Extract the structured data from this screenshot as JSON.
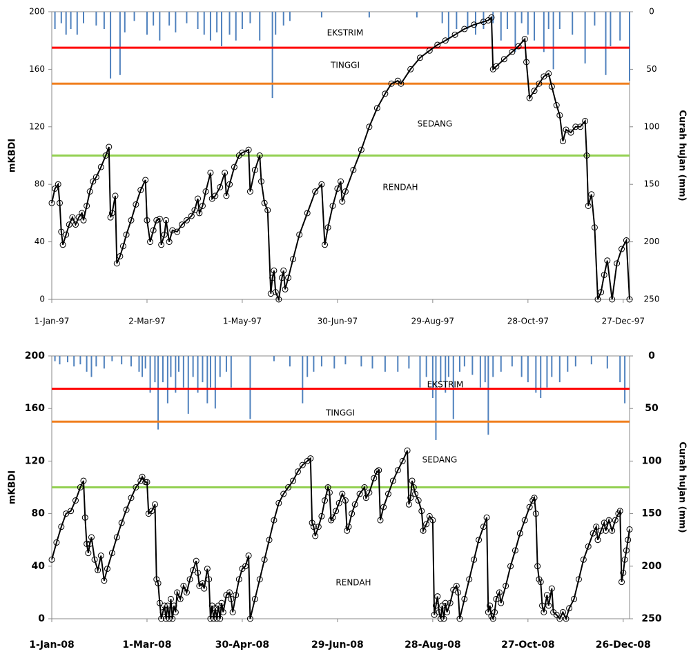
{
  "chart_data": [
    {
      "type": "line",
      "ylabel": "mKBDI",
      "y2label": "Curah hujan (mm)",
      "xlim": [
        0,
        364
      ],
      "ylim": [
        0,
        200
      ],
      "y2lim": [
        250,
        0
      ],
      "xticks": [
        {
          "value": 0,
          "label": "1-Jan-97"
        },
        {
          "value": 60,
          "label": "2-Mar-97"
        },
        {
          "value": 120,
          "label": "1-May-97"
        },
        {
          "value": 180,
          "label": "30-Jun-97"
        },
        {
          "value": 240,
          "label": "29-Aug-97"
        },
        {
          "value": 300,
          "label": "28-Oct-97"
        },
        {
          "value": 360,
          "label": "27-Dec-97"
        }
      ],
      "yticks": [
        0,
        40,
        80,
        120,
        160,
        200
      ],
      "y2ticks": [
        0,
        50,
        100,
        150,
        200,
        250
      ],
      "hlines": [
        {
          "value": 175,
          "color": "#ff0000"
        },
        {
          "value": 150,
          "color": "#f07f1e"
        },
        {
          "value": 100,
          "color": "#92d050"
        }
      ],
      "annotations": [
        "EKSTRIM",
        "TINGGI",
        "SEDANG",
        "RENDAH"
      ],
      "series": [
        {
          "type": "bar",
          "axis": "y2",
          "color": "#4f81bd",
          "x": [
            2,
            6,
            9,
            12,
            16,
            20,
            28,
            33,
            37,
            43,
            46,
            52,
            60,
            64,
            68,
            74,
            78,
            85,
            92,
            96,
            100,
            104,
            107,
            112,
            116,
            120,
            125,
            131,
            139,
            141,
            146,
            150,
            170,
            200,
            230,
            246,
            250,
            255,
            262,
            267,
            272,
            278,
            283,
            287,
            292,
            296,
            300,
            304,
            310,
            313,
            316,
            320,
            328,
            336,
            342,
            349,
            352,
            358,
            364
          ],
          "values": [
            15,
            10,
            20,
            15,
            20,
            10,
            12,
            15,
            58,
            55,
            18,
            8,
            20,
            12,
            25,
            12,
            18,
            10,
            15,
            20,
            25,
            18,
            30,
            20,
            25,
            15,
            10,
            25,
            75,
            20,
            12,
            8,
            5,
            5,
            5,
            10,
            25,
            15,
            15,
            20,
            15,
            10,
            25,
            15,
            35,
            10,
            20,
            25,
            35,
            15,
            50,
            15,
            20,
            45,
            12,
            55,
            30,
            25,
            60
          ]
        },
        {
          "type": "line",
          "color": "#000000",
          "x": [
            0,
            2,
            4,
            5,
            6,
            7,
            9,
            11,
            13,
            15,
            17,
            19,
            20,
            22,
            24,
            26,
            28,
            31,
            34,
            36,
            37,
            38,
            40,
            41,
            43,
            45,
            47,
            50,
            53,
            56,
            59,
            60,
            62,
            64,
            66,
            68,
            69,
            71,
            72,
            74,
            76,
            79,
            82,
            85,
            88,
            90,
            92,
            93,
            95,
            97,
            100,
            101,
            103,
            106,
            109,
            110,
            112,
            115,
            118,
            120,
            124,
            125,
            128,
            131,
            132,
            134,
            136,
            138,
            139,
            140,
            141,
            143,
            145,
            146,
            147,
            149,
            152,
            156,
            161,
            166,
            170,
            172,
            174,
            177,
            180,
            182,
            183,
            185,
            190,
            195,
            200,
            205,
            210,
            214,
            218,
            220,
            226,
            232,
            238,
            243,
            248,
            254,
            260,
            266,
            272,
            275,
            277,
            278,
            280,
            285,
            290,
            294,
            298,
            299,
            301,
            304,
            307,
            310,
            313,
            315,
            318,
            320,
            322,
            324,
            327,
            330,
            333,
            336,
            337,
            338,
            340,
            342,
            344,
            346,
            348,
            350,
            353,
            356,
            359,
            362,
            364
          ],
          "values": [
            67,
            77,
            80,
            67,
            47,
            38,
            45,
            52,
            57,
            52,
            57,
            60,
            55,
            65,
            75,
            82,
            85,
            92,
            100,
            106,
            57,
            60,
            72,
            25,
            30,
            37,
            45,
            55,
            66,
            76,
            83,
            55,
            40,
            48,
            55,
            56,
            38,
            45,
            55,
            40,
            48,
            47,
            52,
            55,
            58,
            62,
            70,
            60,
            65,
            75,
            88,
            70,
            72,
            78,
            88,
            72,
            80,
            92,
            100,
            102,
            104,
            75,
            90,
            100,
            82,
            67,
            62,
            4,
            15,
            20,
            5,
            0,
            15,
            20,
            7,
            15,
            28,
            45,
            60,
            75,
            80,
            38,
            50,
            65,
            77,
            82,
            68,
            75,
            90,
            104,
            120,
            133,
            143,
            150,
            152,
            150,
            160,
            168,
            173,
            177,
            180,
            184,
            188,
            191,
            193,
            194,
            196,
            160,
            162,
            167,
            172,
            176,
            181,
            165,
            140,
            145,
            150,
            155,
            157,
            148,
            135,
            128,
            110,
            118,
            116,
            120,
            120,
            124,
            100,
            65,
            73,
            50,
            0,
            5,
            17,
            27,
            0,
            25,
            35,
            41,
            0
          ]
        }
      ]
    },
    {
      "type": "line",
      "ylabel": "mKBDI",
      "y2label": "Curah hujan (mm)",
      "xlim": [
        0,
        364
      ],
      "ylim": [
        0,
        200
      ],
      "y2lim": [
        250,
        0
      ],
      "xticks": [
        {
          "value": 0,
          "label": "1-Jan-08"
        },
        {
          "value": 60,
          "label": "1-Mar-08"
        },
        {
          "value": 120,
          "label": "30-Apr-08"
        },
        {
          "value": 180,
          "label": "29-Jun-08"
        },
        {
          "value": 240,
          "label": "28-Aug-08"
        },
        {
          "value": 300,
          "label": "27-Oct-08"
        },
        {
          "value": 360,
          "label": "26-Dec-08"
        }
      ],
      "yticks": [
        0,
        40,
        80,
        120,
        160,
        200
      ],
      "y2ticks": [
        0,
        50,
        100,
        150,
        200,
        250
      ],
      "hlines": [
        {
          "value": 175,
          "color": "#ff0000"
        },
        {
          "value": 150,
          "color": "#f07f1e"
        },
        {
          "value": 100,
          "color": "#92d050"
        }
      ],
      "annotations": [
        "EKSTRIM",
        "TINGGI",
        "SEDANG",
        "RENDAH"
      ],
      "series": [
        {
          "type": "bar",
          "axis": "y2",
          "color": "#4f81bd",
          "x": [
            2,
            5,
            10,
            14,
            18,
            22,
            25,
            28,
            33,
            38,
            44,
            50,
            55,
            57,
            59,
            62,
            65,
            67,
            70,
            73,
            75,
            78,
            80,
            83,
            86,
            89,
            92,
            95,
            98,
            100,
            103,
            106,
            110,
            113,
            125,
            140,
            150,
            158,
            161,
            165,
            170,
            178,
            185,
            195,
            202,
            210,
            218,
            225,
            232,
            236,
            240,
            242,
            245,
            248,
            250,
            253,
            257,
            260,
            265,
            270,
            273,
            275,
            278,
            283,
            290,
            296,
            300,
            305,
            308,
            312,
            315,
            320,
            325,
            330,
            340,
            350,
            358,
            361
          ],
          "values": [
            5,
            8,
            6,
            10,
            8,
            15,
            20,
            10,
            12,
            5,
            8,
            10,
            15,
            20,
            12,
            35,
            25,
            70,
            25,
            45,
            20,
            35,
            15,
            30,
            55,
            20,
            35,
            25,
            45,
            30,
            50,
            20,
            15,
            30,
            60,
            5,
            10,
            45,
            20,
            15,
            10,
            12,
            8,
            10,
            12,
            15,
            15,
            12,
            30,
            20,
            40,
            80,
            25,
            35,
            20,
            60,
            15,
            10,
            18,
            30,
            25,
            75,
            20,
            15,
            10,
            20,
            25,
            35,
            40,
            30,
            20,
            25,
            15,
            10,
            8,
            12,
            25,
            45
          ]
        },
        {
          "type": "line",
          "color": "#000000",
          "x": [
            0,
            3,
            6,
            9,
            12,
            15,
            18,
            20,
            21,
            22,
            23,
            24,
            25,
            27,
            29,
            31,
            33,
            35,
            38,
            41,
            44,
            47,
            50,
            53,
            56,
            57,
            59,
            60,
            61,
            63,
            65,
            66,
            67,
            68,
            69,
            70,
            71,
            72,
            73,
            74,
            75,
            76,
            77,
            78,
            79,
            81,
            83,
            85,
            87,
            89,
            91,
            92,
            93,
            95,
            96,
            98,
            99,
            100,
            101,
            102,
            103,
            104,
            105,
            106,
            107,
            108,
            110,
            112,
            113,
            114,
            116,
            118,
            120,
            122,
            124,
            125,
            128,
            131,
            134,
            137,
            140,
            143,
            146,
            149,
            152,
            155,
            158,
            161,
            163,
            164,
            165,
            166,
            168,
            170,
            172,
            174,
            175,
            176,
            177,
            179,
            181,
            183,
            185,
            186,
            187,
            189,
            191,
            194,
            197,
            198,
            200,
            203,
            205,
            206,
            207,
            209,
            212,
            215,
            218,
            221,
            224,
            225,
            226,
            227,
            228,
            229,
            231,
            233,
            234,
            236,
            238,
            240,
            241,
            242,
            243,
            244,
            245,
            246,
            247,
            248,
            249,
            251,
            253,
            255,
            256,
            257,
            260,
            263,
            266,
            269,
            272,
            274,
            275,
            276,
            277,
            278,
            279,
            280,
            282,
            283,
            286,
            289,
            292,
            295,
            298,
            301,
            303,
            304,
            305,
            306,
            307,
            308,
            309,
            310,
            312,
            313,
            315,
            316,
            318,
            320,
            322,
            324,
            326,
            329,
            332,
            335,
            338,
            341,
            343,
            344,
            346,
            348,
            349,
            351,
            353,
            355,
            357,
            358,
            359,
            360,
            361,
            362,
            363,
            364
          ],
          "values": [
            45,
            58,
            70,
            80,
            82,
            90,
            100,
            105,
            77,
            57,
            50,
            57,
            62,
            45,
            37,
            48,
            29,
            38,
            50,
            62,
            73,
            83,
            92,
            100,
            105,
            108,
            104,
            104,
            80,
            82,
            87,
            30,
            27,
            12,
            0,
            5,
            10,
            0,
            10,
            0,
            15,
            0,
            10,
            5,
            20,
            15,
            25,
            20,
            30,
            37,
            44,
            35,
            25,
            27,
            23,
            38,
            30,
            0,
            10,
            0,
            8,
            0,
            10,
            0,
            12,
            5,
            18,
            20,
            15,
            5,
            18,
            30,
            38,
            40,
            48,
            0,
            15,
            30,
            45,
            60,
            75,
            88,
            95,
            100,
            105,
            112,
            117,
            120,
            122,
            73,
            70,
            63,
            70,
            78,
            90,
            100,
            96,
            75,
            77,
            82,
            88,
            95,
            90,
            67,
            70,
            80,
            87,
            95,
            100,
            92,
            96,
            107,
            112,
            113,
            75,
            85,
            95,
            105,
            113,
            120,
            128,
            87,
            92,
            105,
            100,
            95,
            90,
            82,
            67,
            72,
            78,
            75,
            3,
            10,
            17,
            5,
            0,
            10,
            0,
            12,
            5,
            12,
            22,
            25,
            20,
            0,
            15,
            30,
            45,
            60,
            70,
            77,
            5,
            10,
            2,
            0,
            5,
            15,
            20,
            12,
            25,
            40,
            52,
            65,
            75,
            85,
            90,
            92,
            80,
            40,
            30,
            28,
            10,
            5,
            18,
            10,
            23,
            5,
            3,
            0,
            5,
            0,
            8,
            15,
            30,
            45,
            55,
            65,
            70,
            60,
            67,
            73,
            67,
            75,
            67,
            75,
            80,
            82,
            28,
            35,
            45,
            52,
            60,
            68
          ]
        }
      ]
    }
  ]
}
